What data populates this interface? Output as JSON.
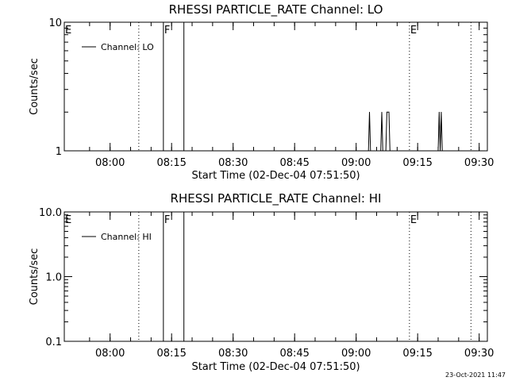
{
  "chart_data": [
    {
      "type": "line",
      "title": "RHESSI PARTICLE_RATE Channel: LO",
      "xlabel": "Start Time (02-Dec-04 07:51:50)",
      "ylabel": "Counts/sec",
      "yscale": "log",
      "ylim": [
        1,
        10
      ],
      "xlim": [
        "07:51:50",
        "09:32:00"
      ],
      "y_tick_labels": [
        "1",
        "10"
      ],
      "x_tick_labels": [
        "08:00",
        "08:15",
        "08:30",
        "08:45",
        "09:00",
        "09:15",
        "09:30"
      ],
      "legend": {
        "label": "Channel: LO",
        "placement": "top-left"
      },
      "vertical_lines": [
        {
          "time": "08:07",
          "style": "dotted"
        },
        {
          "time": "08:13",
          "style": "solid",
          "label": "F"
        },
        {
          "time": "08:18",
          "style": "solid"
        },
        {
          "time": "09:13",
          "style": "dotted",
          "label": "E"
        },
        {
          "time": "09:28",
          "style": "dotted"
        }
      ],
      "edge_markers": [
        "E"
      ],
      "series": [
        {
          "name": "Channel: LO",
          "points": [
            [
              "09:03:00",
              1
            ],
            [
              "09:03:15",
              2
            ],
            [
              "09:03:30",
              1
            ],
            [
              "09:06:00",
              1
            ],
            [
              "09:06:15",
              2
            ],
            [
              "09:06:30",
              1
            ],
            [
              "09:07:15",
              1
            ],
            [
              "09:07:30",
              2
            ],
            [
              "09:08:00",
              2
            ],
            [
              "09:08:15",
              1
            ],
            [
              "09:20:00",
              1
            ],
            [
              "09:20:15",
              2
            ],
            [
              "09:20:30",
              1
            ],
            [
              "09:20:45",
              2
            ],
            [
              "09:21:00",
              1
            ]
          ]
        }
      ]
    },
    {
      "type": "line",
      "title": "RHESSI PARTICLE_RATE Channel: HI",
      "xlabel": "Start Time (02-Dec-04 07:51:50)",
      "ylabel": "Counts/sec",
      "yscale": "log",
      "ylim": [
        0.1,
        10
      ],
      "xlim": [
        "07:51:50",
        "09:32:00"
      ],
      "y_tick_labels": [
        "0.1",
        "1.0",
        "10.0"
      ],
      "x_tick_labels": [
        "08:00",
        "08:15",
        "08:30",
        "08:45",
        "09:00",
        "09:15",
        "09:30"
      ],
      "legend": {
        "label": "Channel: HI",
        "placement": "top-left"
      },
      "vertical_lines": [
        {
          "time": "08:07",
          "style": "dotted"
        },
        {
          "time": "08:13",
          "style": "solid",
          "label": "F"
        },
        {
          "time": "08:18",
          "style": "solid"
        },
        {
          "time": "09:13",
          "style": "dotted",
          "label": "E"
        },
        {
          "time": "09:28",
          "style": "dotted"
        }
      ],
      "edge_markers": [
        "E"
      ],
      "series": [
        {
          "name": "Channel: HI",
          "points": []
        }
      ]
    }
  ],
  "footer": {
    "timestamp": "23-Oct-2021 11:47"
  }
}
